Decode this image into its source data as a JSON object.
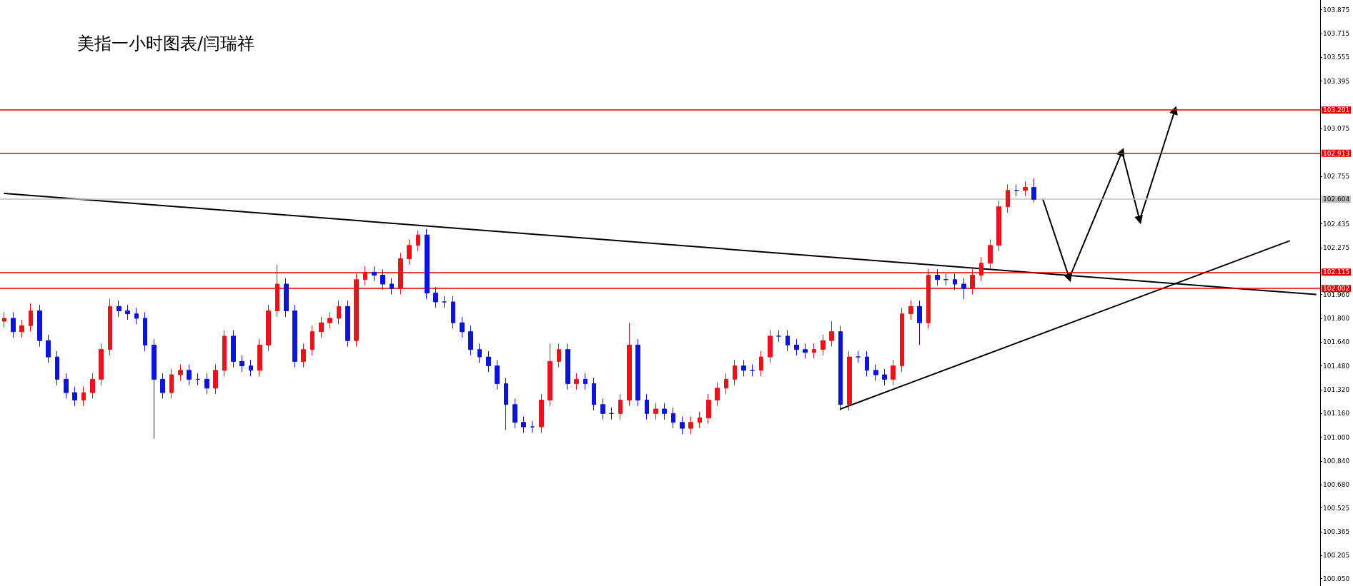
{
  "chart_data": {
    "type": "candlestick",
    "title": "美指一小时图表/闫瑞祥",
    "categories": [
      null,
      null,
      null,
      null,
      null,
      null,
      null,
      null,
      null,
      null,
      null,
      null,
      null,
      null,
      null,
      null,
      null,
      null,
      null,
      null,
      null,
      null,
      null,
      null,
      null,
      null,
      null,
      null,
      null,
      null,
      null,
      null,
      null,
      null,
      null,
      null,
      null,
      null,
      null,
      null,
      null,
      null,
      null,
      null,
      null,
      null,
      null,
      null,
      null,
      null,
      null,
      null,
      null,
      null,
      null,
      null,
      null,
      null,
      null,
      null,
      null,
      null,
      null,
      null,
      null,
      null,
      null,
      null,
      null,
      null,
      null,
      null,
      null,
      null,
      null,
      null,
      null,
      null,
      null,
      null,
      null,
      null,
      null,
      null,
      null,
      null,
      null,
      null,
      null,
      null,
      null,
      null,
      null,
      null,
      null,
      null,
      null,
      null,
      null,
      null,
      null,
      null,
      null,
      null,
      null,
      null,
      null,
      null,
      null,
      null,
      null,
      null,
      null,
      null,
      null,
      null,
      null,
      null,
      null,
      null,
      null,
      null,
      null,
      null,
      null,
      null,
      null,
      null,
      null,
      null,
      null,
      null,
      null,
      null,
      null,
      null,
      null,
      null,
      null,
      null,
      null,
      null,
      null,
      null,
      null,
      null,
      null,
      null,
      null,
      null
    ],
    "colors": [
      "#e8141a",
      "#0b14d8",
      "#e8141a",
      "#e8141a",
      "#0b14d8",
      "#0b14d8",
      "#0b14d8",
      "#0b14d8",
      "#0b14d8",
      "#e8141a",
      "#e8141a",
      "#e8141a",
      "#e8141a",
      "#0b14d8",
      "#0b14d8",
      "#0b14d8",
      "#0b14d8",
      "#0b14d8",
      "#0b14d8",
      "#e8141a",
      "#e8141a",
      "#0b14d8",
      "#0b14d8",
      "#0b14d8",
      "#e8141a",
      "#e8141a",
      "#0b14d8",
      "#0b14d8",
      "#0b14d8",
      "#e8141a",
      "#e8141a",
      "#e8141a",
      "#0b14d8",
      "#0b14d8",
      "#e8141a",
      "#e8141a",
      "#e8141a",
      "#e8141a",
      "#e8141a",
      "#0b14d8",
      "#e8141a",
      "#e8141a",
      "#0b14d8",
      "#0b14d8",
      "#0b14d8",
      "#e8141a",
      "#e8141a",
      "#e8141a",
      "#0b14d8",
      "#0b14d8",
      "#0b14d8",
      "#0b14d8",
      "#0b14d8",
      "#0b14d8",
      "#0b14d8",
      "#0b14d8",
      "#0b14d8",
      "#0b14d8",
      "#0b14d8",
      "#0b14d8",
      "#0b14d8",
      "#e8141a",
      "#e8141a",
      "#e8141a",
      "#0b14d8",
      "#e8141a",
      "#0b14d8",
      "#0b14d8",
      "#0b14d8",
      "#0b14d8",
      "#e8141a",
      "#e8141a",
      "#0b14d8",
      "#0b14d8",
      "#e8141a",
      "#0b14d8",
      "#0b14d8",
      "#0b14d8",
      "#e8141a",
      "#e8141a",
      "#e8141a",
      "#e8141a",
      "#e8141a",
      "#e8141a",
      "#0b14d8",
      "#0b14d8",
      "#e8141a",
      "#e8141a",
      "#0b14d8",
      "#0b14d8",
      "#0b14d8",
      "#0b14d8",
      "#e8141a",
      "#e8141a",
      "#e8141a",
      "#0b14d8",
      "#e8141a",
      "#0b14d8",
      "#0b14d8",
      "#0b14d8",
      "#0b14d8",
      "#e8141a",
      "#e8141a",
      "#e8141a",
      "#0b14d8",
      "#e8141a",
      "#0b14d8",
      "#0b14d8",
      "#0b14d8",
      "#0b14d8",
      "#e8141a",
      "#e8141a",
      "#e8141a",
      "#e8141a",
      "#e8141a",
      "#0b14d8",
      "#e8141a",
      "#0b14d8",
      null,
      null,
      null,
      null,
      null,
      null,
      null,
      null,
      null,
      null,
      null,
      null,
      null,
      null,
      null,
      null,
      null,
      null,
      null,
      null,
      null,
      null,
      null,
      null,
      null,
      null,
      null,
      null,
      null,
      null,
      null,
      null
    ],
    "ohlc": [
      [
        101.78,
        101.84,
        101.74,
        101.8
      ],
      [
        101.8,
        101.84,
        101.67,
        101.71
      ],
      [
        101.71,
        101.79,
        101.67,
        101.75
      ],
      [
        101.75,
        101.9,
        101.71,
        101.85
      ],
      [
        101.85,
        101.89,
        101.61,
        101.65
      ],
      [
        101.65,
        101.69,
        101.5,
        101.54
      ],
      [
        101.54,
        101.58,
        101.35,
        101.39
      ],
      [
        101.39,
        101.43,
        101.26,
        101.3
      ],
      [
        101.3,
        101.34,
        101.21,
        101.25
      ],
      [
        101.25,
        101.34,
        101.21,
        101.3
      ],
      [
        101.3,
        101.43,
        101.26,
        101.39
      ],
      [
        101.39,
        101.63,
        101.35,
        101.59
      ],
      [
        101.59,
        101.93,
        101.55,
        101.88
      ],
      [
        101.88,
        101.92,
        101.81,
        101.85
      ],
      [
        101.85,
        101.89,
        101.79,
        101.83
      ],
      [
        101.83,
        101.87,
        101.76,
        101.8
      ],
      [
        101.8,
        101.84,
        101.58,
        101.62
      ],
      [
        101.62,
        101.66,
        100.99,
        101.39
      ],
      [
        101.39,
        101.43,
        101.26,
        101.3
      ],
      [
        101.3,
        101.46,
        101.26,
        101.42
      ],
      [
        101.42,
        101.49,
        101.38,
        101.45
      ],
      [
        101.45,
        101.49,
        101.35,
        101.39
      ],
      [
        101.39,
        101.43,
        101.35,
        101.39
      ],
      [
        101.39,
        101.43,
        101.29,
        101.33
      ],
      [
        101.33,
        101.49,
        101.29,
        101.45
      ],
      [
        101.45,
        101.72,
        101.41,
        101.68
      ],
      [
        101.68,
        101.72,
        101.47,
        101.51
      ],
      [
        101.51,
        101.55,
        101.44,
        101.48
      ],
      [
        101.48,
        101.52,
        101.41,
        101.45
      ],
      [
        101.45,
        101.66,
        101.41,
        101.62
      ],
      [
        101.62,
        101.89,
        101.58,
        101.85
      ],
      [
        101.85,
        102.16,
        101.81,
        102.03
      ],
      [
        102.03,
        102.07,
        101.81,
        101.85
      ],
      [
        101.85,
        101.89,
        101.47,
        101.51
      ],
      [
        101.51,
        101.63,
        101.47,
        101.59
      ],
      [
        101.59,
        101.75,
        101.55,
        101.71
      ],
      [
        101.71,
        101.81,
        101.67,
        101.77
      ],
      [
        101.77,
        101.84,
        101.73,
        101.8
      ],
      [
        101.8,
        101.92,
        101.76,
        101.88
      ],
      [
        101.88,
        101.92,
        101.61,
        101.65
      ],
      [
        101.65,
        102.1,
        101.61,
        102.06
      ],
      [
        102.06,
        102.15,
        102.02,
        102.11
      ],
      [
        102.11,
        102.15,
        102.05,
        102.09
      ],
      [
        102.09,
        102.13,
        101.99,
        102.03
      ],
      [
        102.03,
        102.07,
        101.96,
        102.0
      ],
      [
        102.0,
        102.24,
        101.96,
        102.2
      ],
      [
        102.2,
        102.33,
        102.16,
        102.29
      ],
      [
        102.29,
        102.39,
        102.25,
        102.36
      ],
      [
        102.36,
        102.4,
        101.93,
        101.97
      ],
      [
        101.97,
        102.01,
        101.87,
        101.91
      ],
      [
        101.91,
        101.95,
        101.87,
        101.91
      ],
      [
        101.91,
        101.95,
        101.73,
        101.77
      ],
      [
        101.77,
        101.81,
        101.67,
        101.71
      ],
      [
        101.71,
        101.75,
        101.55,
        101.59
      ],
      [
        101.59,
        101.63,
        101.5,
        101.54
      ],
      [
        101.54,
        101.58,
        101.44,
        101.48
      ],
      [
        101.48,
        101.52,
        101.32,
        101.36
      ],
      [
        101.36,
        101.4,
        101.05,
        101.22
      ],
      [
        101.22,
        101.26,
        101.06,
        101.1
      ],
      [
        101.1,
        101.14,
        101.03,
        101.07
      ],
      [
        101.07,
        101.11,
        101.03,
        101.07
      ],
      [
        101.07,
        101.29,
        101.03,
        101.25
      ],
      [
        101.25,
        101.63,
        101.21,
        101.51
      ],
      [
        101.51,
        101.63,
        101.47,
        101.59
      ],
      [
        101.59,
        101.63,
        101.32,
        101.36
      ],
      [
        101.36,
        101.43,
        101.32,
        101.39
      ],
      [
        101.39,
        101.43,
        101.32,
        101.36
      ],
      [
        101.36,
        101.4,
        101.18,
        101.22
      ],
      [
        101.22,
        101.26,
        101.12,
        101.16
      ],
      [
        101.16,
        101.2,
        101.12,
        101.16
      ],
      [
        101.16,
        101.29,
        101.12,
        101.25
      ],
      [
        101.25,
        101.77,
        101.21,
        101.62
      ],
      [
        101.62,
        101.66,
        101.21,
        101.25
      ],
      [
        101.25,
        101.29,
        101.12,
        101.16
      ],
      [
        101.16,
        101.23,
        101.12,
        101.19
      ],
      [
        101.19,
        101.23,
        101.12,
        101.16
      ],
      [
        101.16,
        101.2,
        101.06,
        101.1
      ],
      [
        101.1,
        101.14,
        101.02,
        101.06
      ],
      [
        101.06,
        101.14,
        101.02,
        101.1
      ],
      [
        101.1,
        101.17,
        101.06,
        101.13
      ],
      [
        101.13,
        101.29,
        101.09,
        101.25
      ],
      [
        101.25,
        101.37,
        101.21,
        101.33
      ],
      [
        101.33,
        101.43,
        101.29,
        101.39
      ],
      [
        101.39,
        101.52,
        101.35,
        101.48
      ],
      [
        101.48,
        101.52,
        101.41,
        101.45
      ],
      [
        101.45,
        101.49,
        101.41,
        101.45
      ],
      [
        101.45,
        101.58,
        101.41,
        101.54
      ],
      [
        101.54,
        101.72,
        101.5,
        101.68
      ],
      [
        101.68,
        101.72,
        101.64,
        101.68
      ],
      [
        101.68,
        101.72,
        101.58,
        101.62
      ],
      [
        101.62,
        101.66,
        101.55,
        101.59
      ],
      [
        101.59,
        101.63,
        101.53,
        101.57
      ],
      [
        101.57,
        101.63,
        101.53,
        101.59
      ],
      [
        101.59,
        101.69,
        101.55,
        101.65
      ],
      [
        101.65,
        101.78,
        101.61,
        101.71
      ],
      [
        101.71,
        101.75,
        101.18,
        101.22
      ],
      [
        101.22,
        101.58,
        101.18,
        101.54
      ],
      [
        101.54,
        101.58,
        101.5,
        101.54
      ],
      [
        101.54,
        101.58,
        101.41,
        101.45
      ],
      [
        101.45,
        101.49,
        101.38,
        101.42
      ],
      [
        101.42,
        101.46,
        101.35,
        101.39
      ],
      [
        101.39,
        101.52,
        101.35,
        101.48
      ],
      [
        101.48,
        101.87,
        101.44,
        101.83
      ],
      [
        101.83,
        101.92,
        101.79,
        101.88
      ],
      [
        101.88,
        101.92,
        101.62,
        101.77
      ],
      [
        101.77,
        102.13,
        101.73,
        102.09
      ],
      [
        102.09,
        102.13,
        102.02,
        102.06
      ],
      [
        102.06,
        102.1,
        102.02,
        102.06
      ],
      [
        102.06,
        102.1,
        101.99,
        102.03
      ],
      [
        102.03,
        102.07,
        101.93,
        102.0
      ],
      [
        102.0,
        102.13,
        101.96,
        102.09
      ],
      [
        102.09,
        102.21,
        102.05,
        102.17
      ],
      [
        102.17,
        102.33,
        102.13,
        102.29
      ],
      [
        102.29,
        102.59,
        102.25,
        102.55
      ],
      [
        102.55,
        102.7,
        102.51,
        102.66
      ],
      [
        102.66,
        102.7,
        102.62,
        102.66
      ],
      [
        102.66,
        102.72,
        102.62,
        102.68
      ],
      [
        102.68,
        102.74,
        102.58,
        102.6
      ],
      null,
      null,
      null,
      null,
      null,
      null,
      null,
      null,
      null,
      null,
      null,
      null,
      null,
      null,
      null,
      null,
      null,
      null,
      null,
      null,
      null,
      null,
      null,
      null,
      null,
      null,
      null,
      null,
      null,
      null,
      null,
      null
    ],
    "series": [
      {
        "type": "line",
        "color": "#000000",
        "marker": "none",
        "values": [
          102.64,
          null,
          null,
          null,
          null,
          null,
          null,
          null,
          null,
          null,
          null,
          null,
          null,
          null,
          null,
          null,
          null,
          null,
          null,
          null,
          null,
          null,
          null,
          null,
          null,
          null,
          null,
          null,
          null,
          null,
          null,
          null,
          null,
          null,
          null,
          null,
          null,
          null,
          null,
          null,
          null,
          null,
          null,
          null,
          null,
          null,
          null,
          null,
          null,
          null,
          null,
          null,
          null,
          null,
          null,
          null,
          null,
          null,
          null,
          null,
          null,
          null,
          null,
          null,
          null,
          null,
          null,
          null,
          null,
          null,
          null,
          null,
          null,
          null,
          null,
          null,
          null,
          null,
          null,
          null,
          null,
          null,
          null,
          null,
          null,
          null,
          null,
          null,
          null,
          null,
          null,
          null,
          null,
          null,
          null,
          null,
          null,
          null,
          null,
          null,
          null,
          null,
          null,
          null,
          null,
          null,
          null,
          null,
          null,
          null,
          null,
          null,
          null,
          null,
          null,
          null,
          null,
          null,
          null,
          null,
          null,
          null,
          null,
          null,
          null,
          null,
          null,
          null,
          null,
          null,
          null,
          null,
          null,
          null,
          null,
          null,
          null,
          null,
          null,
          null,
          null,
          null,
          null,
          null,
          null,
          null,
          null,
          null,
          null,
          101.96
        ]
      },
      {
        "type": "line",
        "color": "#000000",
        "marker": "none",
        "values": [
          null,
          null,
          null,
          null,
          null,
          null,
          null,
          null,
          null,
          null,
          null,
          null,
          null,
          null,
          null,
          null,
          null,
          null,
          null,
          null,
          null,
          null,
          null,
          null,
          null,
          null,
          null,
          null,
          null,
          null,
          null,
          null,
          null,
          null,
          null,
          null,
          null,
          null,
          null,
          null,
          null,
          null,
          null,
          null,
          null,
          null,
          null,
          null,
          null,
          null,
          null,
          null,
          null,
          null,
          null,
          null,
          null,
          null,
          null,
          null,
          null,
          null,
          null,
          null,
          null,
          null,
          null,
          null,
          null,
          null,
          null,
          null,
          null,
          null,
          null,
          null,
          null,
          null,
          null,
          null,
          null,
          null,
          null,
          null,
          null,
          null,
          null,
          null,
          null,
          null,
          null,
          null,
          null,
          null,
          null,
          101.19,
          null,
          null,
          null,
          null,
          null,
          null,
          null,
          null,
          null,
          null,
          null,
          null,
          null,
          null,
          null,
          null,
          null,
          null,
          null,
          null,
          null,
          null,
          null,
          null,
          null,
          null,
          null,
          null,
          null,
          null,
          null,
          null,
          null,
          null,
          null,
          null,
          null,
          null,
          null,
          null,
          null,
          null,
          null,
          null,
          null,
          null,
          null,
          null,
          null,
          null,
          102.32,
          null,
          null,
          null
        ]
      },
      {
        "type": "line",
        "color": "#000000",
        "marker": "triangle",
        "values": [
          null,
          null,
          null,
          null,
          null,
          null,
          null,
          null,
          null,
          null,
          null,
          null,
          null,
          null,
          null,
          null,
          null,
          null,
          null,
          null,
          null,
          null,
          null,
          null,
          null,
          null,
          null,
          null,
          null,
          null,
          null,
          null,
          null,
          null,
          null,
          null,
          null,
          null,
          null,
          null,
          null,
          null,
          null,
          null,
          null,
          null,
          null,
          null,
          null,
          null,
          null,
          null,
          null,
          null,
          null,
          null,
          null,
          null,
          null,
          null,
          null,
          null,
          null,
          null,
          null,
          null,
          null,
          null,
          null,
          null,
          null,
          null,
          null,
          null,
          null,
          null,
          null,
          null,
          null,
          null,
          null,
          null,
          null,
          null,
          null,
          null,
          null,
          null,
          null,
          null,
          null,
          null,
          null,
          null,
          null,
          null,
          null,
          null,
          null,
          null,
          null,
          null,
          null,
          null,
          null,
          null,
          null,
          null,
          null,
          null,
          null,
          null,
          null,
          null,
          null,
          null,
          null,
          null,
          102.6,
          null,
          null,
          102.07,
          null,
          null,
          null,
          null,
          null,
          102.92,
          null,
          102.46,
          null,
          null,
          null,
          103.2,
          null,
          null,
          null,
          null,
          null,
          null,
          null,
          null,
          null,
          null,
          null,
          null,
          null,
          null,
          null,
          null
        ]
      }
    ],
    "ref_lines": [
      {
        "axis": "y",
        "value": 103.201,
        "label": "103.201",
        "color": "#e60000"
      },
      {
        "axis": "y",
        "value": 102.913,
        "label": "102.913",
        "color": "#e60000"
      },
      {
        "axis": "y",
        "value": 102.604,
        "label": "102.604",
        "color": "#c0c0c0"
      },
      {
        "axis": "y",
        "value": 102.115,
        "label": "102.115",
        "color": "#e60000"
      },
      {
        "axis": "y",
        "value": 102.002,
        "label": "102.002",
        "color": "#e60000"
      }
    ],
    "ylim": [
      100.0,
      103.94
    ],
    "yticks": [
      103.875,
      103.715,
      103.555,
      103.395,
      103.075,
      102.755,
      102.435,
      102.275,
      {
        "value": 101.96,
        "label": "101.960"
      },
      {
        "value": 101.8,
        "label": "101.800"
      },
      {
        "value": 101.64,
        "label": "101.640"
      },
      {
        "value": 101.48,
        "label": "101.480"
      },
      {
        "value": 101.32,
        "label": "101.320"
      },
      {
        "value": 101.16,
        "label": "101.160"
      },
      {
        "value": 101.0,
        "label": "101.000"
      },
      {
        "value": 100.84,
        "label": "100.840"
      },
      {
        "value": 100.68,
        "label": "100.680"
      },
      100.525,
      100.365,
      100.205,
      {
        "value": 100.05,
        "label": "100.050"
      }
    ],
    "tick_labels": "y",
    "grid": false
  }
}
